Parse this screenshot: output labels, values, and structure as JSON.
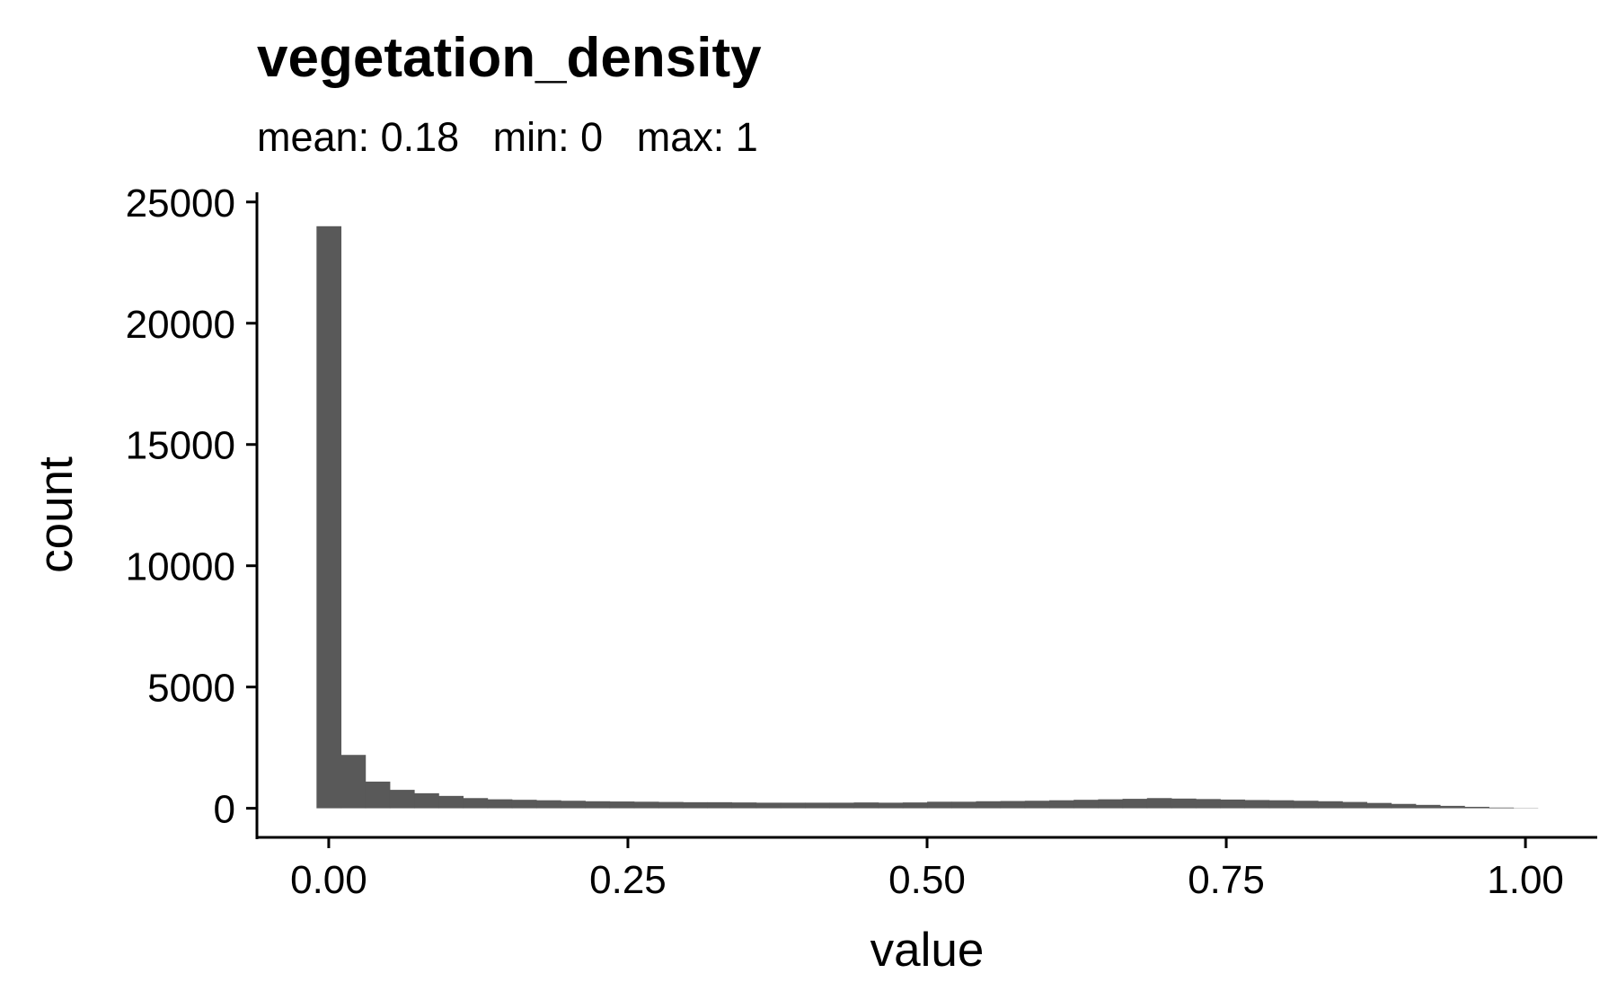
{
  "chart_data": {
    "type": "bar",
    "title": "vegetation_density",
    "subtitle": "mean: 0.18   min: 0   max: 1",
    "xlabel": "value",
    "ylabel": "count",
    "xlim": [
      -0.06,
      1.06
    ],
    "ylim": [
      -1200,
      25400
    ],
    "x_ticks": [
      0.0,
      0.25,
      0.5,
      0.75,
      1.0
    ],
    "x_tick_labels": [
      "0.00",
      "0.25",
      "0.50",
      "0.75",
      "1.00"
    ],
    "y_ticks": [
      0,
      5000,
      10000,
      15000,
      20000,
      25000
    ],
    "y_tick_labels": [
      "0",
      "5000",
      "10000",
      "15000",
      "20000",
      "25000"
    ],
    "bin_width": 0.02041,
    "bin_start": -0.0102,
    "values": [
      24000,
      2200,
      1100,
      760,
      620,
      510,
      420,
      370,
      350,
      330,
      310,
      290,
      280,
      270,
      260,
      250,
      250,
      240,
      230,
      230,
      230,
      230,
      240,
      230,
      240,
      270,
      270,
      290,
      300,
      310,
      330,
      350,
      370,
      390,
      420,
      400,
      380,
      360,
      340,
      330,
      310,
      290,
      260,
      220,
      180,
      140,
      100,
      60,
      30,
      10
    ],
    "bar_color": "#595959",
    "grid": false
  }
}
